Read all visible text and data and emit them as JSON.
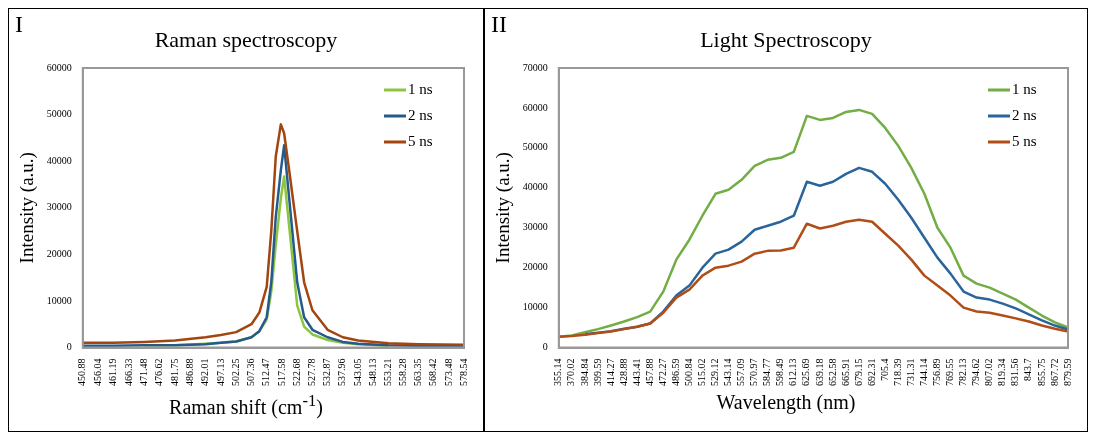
{
  "chart_data": [
    {
      "type": "line",
      "title": "Raman spectroscopy",
      "xlabel": "Raman shift (cm$^{-1}$)",
      "ylabel": "Intensity (a.u.)",
      "annotations": [
        "I"
      ],
      "legend": "top right",
      "marker": "none",
      "x": [
        450.88,
        461.19,
        471.48,
        481.75,
        492.01,
        497.13,
        502.25,
        507.36,
        510,
        512.47,
        514,
        515.5,
        517.2,
        518.3,
        520,
        522.68,
        525,
        527.78,
        532.87,
        537.96,
        543.05,
        553.21,
        563.35,
        578.54
      ],
      "xlim": [
        450.88,
        578.54
      ],
      "xticks": [
        450.88,
        456.04,
        461.19,
        466.33,
        471.48,
        476.62,
        481.75,
        486.88,
        492.01,
        497.13,
        502.25,
        507.36,
        512.47,
        517.58,
        522.68,
        527.78,
        532.87,
        537.96,
        543.05,
        548.13,
        553.21,
        558.28,
        563.35,
        568.42,
        573.48,
        578.54
      ],
      "ylim": [
        0,
        60000
      ],
      "yticks": [
        0,
        10000,
        20000,
        30000,
        40000,
        50000,
        60000
      ],
      "series": [
        {
          "name": "1 ns",
          "color": "#8cc63e",
          "values": [
            null,
            null,
            500,
            500,
            800,
            1000,
            1300,
            2200,
            3500,
            6000,
            12000,
            22000,
            32000,
            36700,
            26000,
            9000,
            4500,
            2800,
            1600,
            1000,
            700,
            400,
            null,
            null
          ]
        },
        {
          "name": "2 ns",
          "color": "#245a8c",
          "values": [
            400,
            400,
            500,
            500,
            700,
            1000,
            1300,
            2200,
            3500,
            6500,
            14000,
            28000,
            38000,
            43400,
            32000,
            14000,
            6500,
            3800,
            2200,
            1200,
            800,
            500,
            400,
            400
          ]
        },
        {
          "name": "5 ns",
          "color": "#a2450f",
          "values": [
            1000,
            1000,
            1200,
            1500,
            2200,
            2700,
            3300,
            5000,
            7500,
            13000,
            25000,
            41000,
            47900,
            46000,
            38000,
            25000,
            14000,
            8000,
            3800,
            2200,
            1500,
            900,
            700,
            600
          ]
        }
      ]
    },
    {
      "type": "line",
      "title": "Light Spectroscopy",
      "xlabel": "Wavelength (nm)",
      "ylabel": "Intensity (a.u.)",
      "annotations": [
        "II"
      ],
      "legend": "top right",
      "marker": "none",
      "categories": [
        "355.14",
        "370.02",
        "384.84",
        "399.59",
        "414.27",
        "428.88",
        "443.41",
        "457.88",
        "472.27",
        "486.59",
        "500.84",
        "515.02",
        "529.12",
        "543.14",
        "557.09",
        "570.97",
        "584.77",
        "598.49",
        "612.13",
        "625.69",
        "639.18",
        "652.58",
        "665.91",
        "679.15",
        "692.31",
        "705.4",
        "718.39",
        "731.31",
        "744.14",
        "756.89",
        "769.55",
        "782.13",
        "794.62",
        "807.02",
        "819.34",
        "831.56",
        "843.7",
        "855.75",
        "867.72",
        "879.59"
      ],
      "ylim": [
        0,
        70000
      ],
      "yticks": [
        0,
        10000,
        20000,
        30000,
        40000,
        50000,
        60000,
        70000
      ],
      "series": [
        {
          "name": "1 ns",
          "color": "#72ad45",
          "values": [
            2700,
            3000,
            3800,
            4600,
            5500,
            6500,
            7600,
            9000,
            14000,
            22000,
            27000,
            33000,
            38500,
            39500,
            42000,
            45500,
            47000,
            47500,
            49000,
            58000,
            57000,
            57500,
            59000,
            59500,
            58500,
            55000,
            50500,
            45000,
            38500,
            30000,
            25000,
            18000,
            16000,
            15000,
            13500,
            12000,
            10000,
            8000,
            6300,
            5000
          ]
        },
        {
          "name": "2 ns",
          "color": "#2a649c",
          "values": [
            null,
            null,
            3300,
            3700,
            4100,
            4700,
            5200,
            6000,
            9000,
            13000,
            15500,
            20000,
            23500,
            24500,
            26500,
            29500,
            30500,
            31500,
            33000,
            41500,
            40500,
            41500,
            43500,
            45000,
            44000,
            41000,
            37000,
            32500,
            27500,
            22500,
            18500,
            14000,
            12500,
            12000,
            11000,
            9800,
            8300,
            6800,
            5500,
            4500
          ]
        },
        {
          "name": "5 ns",
          "color": "#b14d17",
          "values": [
            2700,
            2900,
            3200,
            3600,
            4000,
            4600,
            5200,
            6000,
            8700,
            12500,
            14500,
            18000,
            20000,
            20500,
            21500,
            23500,
            24200,
            24300,
            25000,
            31000,
            29800,
            30500,
            31500,
            32000,
            31500,
            28500,
            25500,
            22000,
            18000,
            15500,
            13000,
            10000,
            9000,
            8700,
            8000,
            7300,
            6500,
            5500,
            4700,
            4000
          ]
        }
      ]
    }
  ]
}
